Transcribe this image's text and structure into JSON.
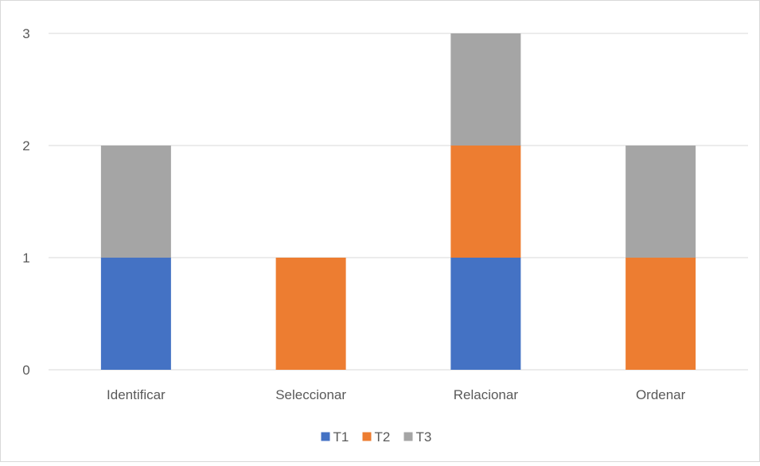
{
  "chart_data": {
    "type": "bar",
    "stacked": true,
    "title": "",
    "xlabel": "",
    "ylabel": "",
    "categories": [
      "Identificar",
      "Seleccionar",
      "Relacionar",
      "Ordenar"
    ],
    "series": [
      {
        "name": "T1",
        "color": "#4472C4",
        "values": [
          1,
          0,
          1,
          0
        ]
      },
      {
        "name": "T2",
        "color": "#ED7D31",
        "values": [
          0,
          1,
          1,
          1
        ]
      },
      {
        "name": "T3",
        "color": "#A5A5A5",
        "values": [
          1,
          0,
          1,
          1
        ]
      }
    ],
    "ylim": [
      0,
      3
    ],
    "yticks": [
      0,
      1,
      2,
      3
    ],
    "grid": true,
    "legend_position": "bottom"
  }
}
